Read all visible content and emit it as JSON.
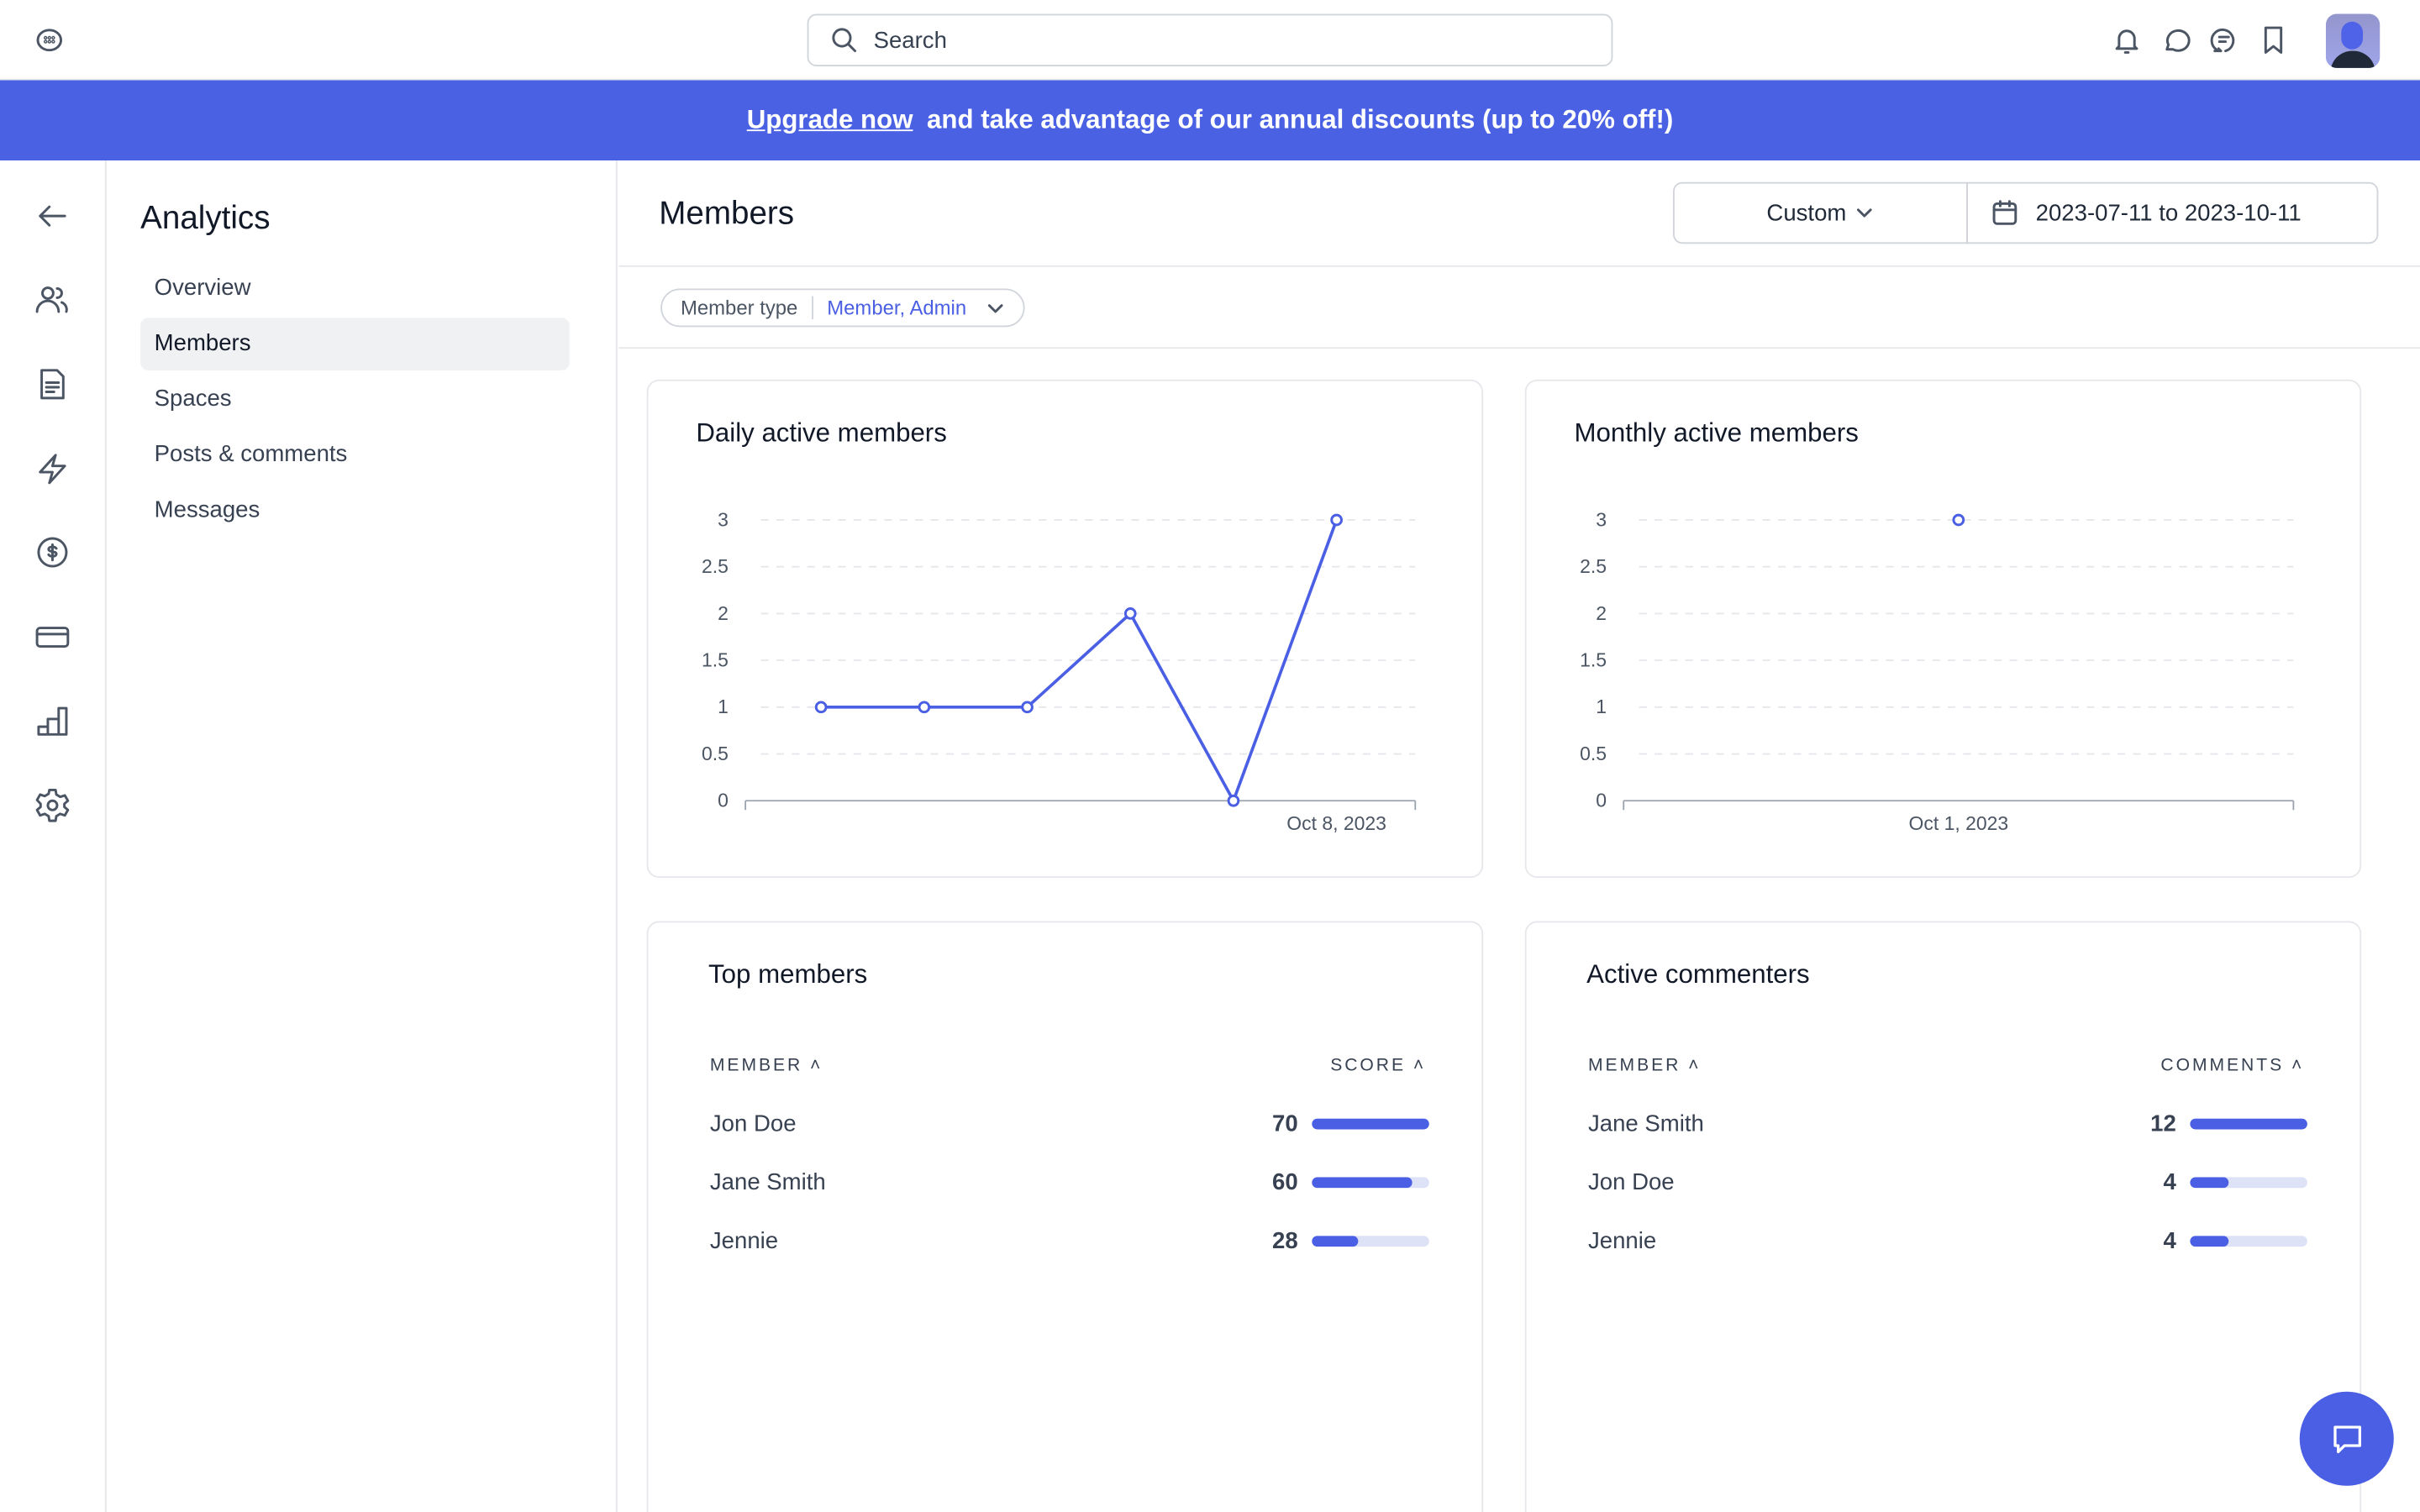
{
  "header": {
    "search_placeholder": "Search"
  },
  "banner": {
    "link": "Upgrade now",
    "text": "and take advantage of our annual discounts (up to 20% off!)"
  },
  "sidebar": {
    "title": "Analytics",
    "items": [
      {
        "label": "Overview"
      },
      {
        "label": "Members"
      },
      {
        "label": "Spaces"
      },
      {
        "label": "Posts & comments"
      },
      {
        "label": "Messages"
      }
    ]
  },
  "main": {
    "title": "Members",
    "range_select": "Custom",
    "date_range": "2023-07-11 to 2023-10-11",
    "filter": {
      "label": "Member type",
      "value": "Member, Admin"
    }
  },
  "colors": {
    "accent": "#4a5fe3",
    "bar_track": "#dde2f7"
  },
  "chart_data": [
    {
      "type": "line",
      "title": "Daily active members",
      "x_tick_labels": [
        "Oct 8, 2023"
      ],
      "values": [
        1,
        1,
        1,
        2,
        0,
        3
      ],
      "y_ticks": [
        "0",
        "0.5",
        "1",
        "1.5",
        "2",
        "2.5",
        "3"
      ],
      "ylim": [
        0,
        3
      ],
      "grid": true
    },
    {
      "type": "line",
      "title": "Monthly active members",
      "x_tick_labels": [
        "Oct 1, 2023"
      ],
      "values": [
        3
      ],
      "y_ticks": [
        "0",
        "0.5",
        "1",
        "1.5",
        "2",
        "2.5",
        "3"
      ],
      "ylim": [
        0,
        3
      ],
      "grid": true
    }
  ],
  "top_members": {
    "title": "Top members",
    "col_member": "MEMBER",
    "col_score": "SCORE",
    "max": 70,
    "rows": [
      {
        "name": "Jon Doe",
        "value": "70",
        "n": 70
      },
      {
        "name": "Jane Smith",
        "value": "60",
        "n": 60
      },
      {
        "name": "Jennie",
        "value": "28",
        "n": 28
      }
    ]
  },
  "active_commenters": {
    "title": "Active commenters",
    "col_member": "MEMBER",
    "col_score": "COMMENTS",
    "max": 12,
    "rows": [
      {
        "name": "Jane Smith",
        "value": "12",
        "n": 12
      },
      {
        "name": "Jon Doe",
        "value": "4",
        "n": 4
      },
      {
        "name": "Jennie",
        "value": "4",
        "n": 4
      }
    ]
  }
}
